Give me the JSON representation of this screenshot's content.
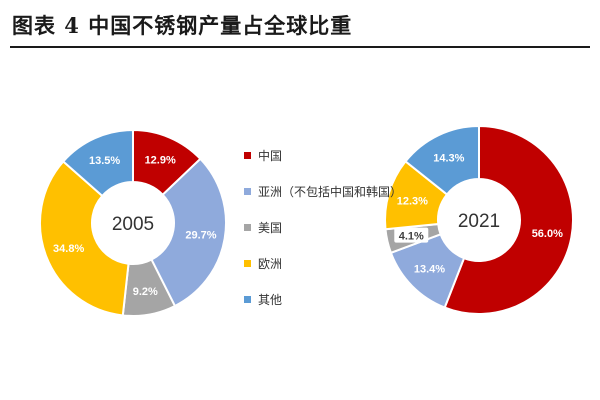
{
  "title": "图表 4  中国不锈钢产量占全球比重",
  "legend_order": [
    "中国",
    "亚洲（不包括中国和韩国）",
    "美国",
    "欧洲",
    "其他"
  ],
  "colors": {
    "中国": "#c00000",
    "亚洲（不包括中国和韩国）": "#8faadc",
    "美国": "#a5a5a5",
    "欧洲": "#ffc000",
    "其他": "#5b9bd5"
  },
  "chart_data": [
    {
      "type": "pie",
      "variant": "donut",
      "title": "2005",
      "categories": [
        "中国",
        "亚洲（不包括中国和韩国）",
        "美国",
        "欧洲",
        "其他"
      ],
      "values": [
        12.9,
        29.7,
        9.2,
        34.8,
        13.5
      ],
      "labels": [
        "12.9%",
        "29.7%",
        "9.2%",
        "34.8%",
        "13.5%"
      ]
    },
    {
      "type": "pie",
      "variant": "donut",
      "title": "2021",
      "categories": [
        "中国",
        "亚洲（不包括中国和韩国）",
        "美国",
        "欧洲",
        "其他"
      ],
      "values": [
        56.0,
        13.4,
        4.1,
        12.3,
        14.3
      ],
      "labels": [
        "56.0%",
        "13.4%",
        "4.1%",
        "12.3%",
        "14.3%"
      ]
    }
  ]
}
